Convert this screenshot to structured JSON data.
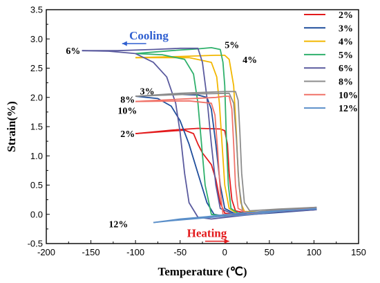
{
  "chart_data": {
    "type": "line",
    "title": "",
    "xlabel": "Temperature (℃)",
    "ylabel": "Strain(%)",
    "xlim": [
      -200,
      150
    ],
    "ylim": [
      -0.5,
      3.5
    ],
    "xticks": [
      "-200",
      "-150",
      "-100",
      "-50",
      "0",
      "50",
      "100",
      "150"
    ],
    "yticks": [
      "-0.5",
      "0.0",
      "0.5",
      "1.0",
      "1.5",
      "2.0",
      "2.5",
      "3.0",
      "3.5"
    ],
    "grid": false,
    "legend_position": "right",
    "series": [
      {
        "name": "2%",
        "color": "#e31a1c",
        "cooling": [
          [
            103,
            0.1
          ],
          [
            60,
            0.06
          ],
          [
            30,
            0.02
          ],
          [
            10,
            0
          ],
          [
            0,
            0.02
          ],
          [
            -5,
            0.2
          ],
          [
            -10,
            0.6
          ],
          [
            -15,
            0.85
          ],
          [
            -20,
            0.95
          ],
          [
            -25,
            1.05
          ],
          [
            -30,
            1.2
          ],
          [
            -35,
            1.38
          ],
          [
            -45,
            1.44
          ],
          [
            -65,
            1.42
          ],
          [
            -100,
            1.38
          ]
        ],
        "heating": [
          [
            -100,
            1.38
          ],
          [
            -60,
            1.44
          ],
          [
            -30,
            1.47
          ],
          [
            -5,
            1.46
          ],
          [
            0,
            1.43
          ],
          [
            3,
            1.2
          ],
          [
            5,
            0.7
          ],
          [
            8,
            0.25
          ],
          [
            12,
            0.06
          ],
          [
            25,
            0.02
          ],
          [
            60,
            0.05
          ],
          [
            103,
            0.1
          ]
        ]
      },
      {
        "name": "3%",
        "color": "#1f4e9c",
        "cooling": [
          [
            103,
            0.08
          ],
          [
            50,
            0.02
          ],
          [
            20,
            -0.01
          ],
          [
            -5,
            -0.02
          ],
          [
            -12,
            0.0
          ],
          [
            -20,
            0.2
          ],
          [
            -30,
            0.7
          ],
          [
            -40,
            1.2
          ],
          [
            -50,
            1.6
          ],
          [
            -60,
            1.85
          ],
          [
            -75,
            1.98
          ],
          [
            -100,
            2.02
          ]
        ],
        "heating": [
          [
            -100,
            2.02
          ],
          [
            -70,
            2.04
          ],
          [
            -50,
            2.05
          ],
          [
            -30,
            2.04
          ],
          [
            -20,
            2.0
          ],
          [
            -15,
            1.8
          ],
          [
            -10,
            1.2
          ],
          [
            -5,
            0.5
          ],
          [
            0,
            0.1
          ],
          [
            10,
            0.02
          ],
          [
            50,
            0.04
          ],
          [
            103,
            0.08
          ]
        ]
      },
      {
        "name": "4%",
        "color": "#f2b701",
        "cooling": [
          [
            103,
            0.1
          ],
          [
            60,
            0.06
          ],
          [
            30,
            0.02
          ],
          [
            15,
            0
          ],
          [
            5,
            0.1
          ],
          [
            0,
            0.5
          ],
          [
            -3,
            1.2
          ],
          [
            -6,
            1.9
          ],
          [
            -9,
            2.35
          ],
          [
            -15,
            2.6
          ],
          [
            -40,
            2.68
          ],
          [
            -100,
            2.68
          ]
        ],
        "heating": [
          [
            -100,
            2.68
          ],
          [
            -50,
            2.7
          ],
          [
            -10,
            2.72
          ],
          [
            0,
            2.72
          ],
          [
            5,
            2.65
          ],
          [
            10,
            2.2
          ],
          [
            13,
            1.4
          ],
          [
            15,
            0.7
          ],
          [
            18,
            0.2
          ],
          [
            22,
            0.05
          ],
          [
            40,
            0.04
          ],
          [
            103,
            0.1
          ]
        ]
      },
      {
        "name": "5%",
        "color": "#2eb06b",
        "cooling": [
          [
            103,
            0.1
          ],
          [
            60,
            0.05
          ],
          [
            30,
            0
          ],
          [
            0,
            -0.03
          ],
          [
            -15,
            0.0
          ],
          [
            -22,
            0.5
          ],
          [
            -26,
            1.2
          ],
          [
            -30,
            1.9
          ],
          [
            -35,
            2.4
          ],
          [
            -45,
            2.65
          ],
          [
            -70,
            2.73
          ],
          [
            -100,
            2.75
          ]
        ],
        "heating": [
          [
            -100,
            2.75
          ],
          [
            -60,
            2.8
          ],
          [
            -30,
            2.83
          ],
          [
            -15,
            2.85
          ],
          [
            -5,
            2.82
          ],
          [
            -2,
            2.6
          ],
          [
            0,
            2.2
          ],
          [
            2,
            1.2
          ],
          [
            4,
            0.5
          ],
          [
            7,
            0.1
          ],
          [
            15,
            0.02
          ],
          [
            50,
            0.05
          ],
          [
            103,
            0.1
          ]
        ]
      },
      {
        "name": "6%",
        "color": "#5a5a9e",
        "cooling": [
          [
            103,
            0.08
          ],
          [
            60,
            0.04
          ],
          [
            20,
            -0.02
          ],
          [
            -15,
            -0.08
          ],
          [
            -30,
            -0.05
          ],
          [
            -40,
            0.2
          ],
          [
            -45,
            0.7
          ],
          [
            -50,
            1.4
          ],
          [
            -55,
            1.9
          ],
          [
            -65,
            2.35
          ],
          [
            -80,
            2.6
          ],
          [
            -100,
            2.75
          ],
          [
            -130,
            2.79
          ],
          [
            -160,
            2.8
          ]
        ],
        "heating": [
          [
            -160,
            2.8
          ],
          [
            -120,
            2.8
          ],
          [
            -80,
            2.82
          ],
          [
            -50,
            2.84
          ],
          [
            -30,
            2.84
          ],
          [
            -25,
            2.6
          ],
          [
            -20,
            2.0
          ],
          [
            -15,
            1.2
          ],
          [
            -10,
            0.5
          ],
          [
            -5,
            0.1
          ],
          [
            10,
            0.0
          ],
          [
            50,
            0.04
          ],
          [
            103,
            0.08
          ]
        ]
      },
      {
        "name": "8%",
        "color": "#8c8c8c",
        "cooling": [
          [
            103,
            0.12
          ],
          [
            60,
            0.08
          ],
          [
            30,
            0.03
          ],
          [
            20,
            0.05
          ],
          [
            16,
            0.5
          ],
          [
            13,
            1.3
          ],
          [
            10,
            1.9
          ],
          [
            5,
            2.07
          ],
          [
            -30,
            2.06
          ],
          [
            -100,
            2.02
          ]
        ],
        "heating": [
          [
            -100,
            2.02
          ],
          [
            -50,
            2.07
          ],
          [
            0,
            2.1
          ],
          [
            12,
            2.1
          ],
          [
            15,
            1.95
          ],
          [
            17,
            1.4
          ],
          [
            19,
            0.7
          ],
          [
            22,
            0.2
          ],
          [
            28,
            0.06
          ],
          [
            60,
            0.09
          ],
          [
            103,
            0.12
          ]
        ]
      },
      {
        "name": "10%",
        "color": "#f07167",
        "cooling": [
          [
            103,
            0.1
          ],
          [
            60,
            0.05
          ],
          [
            30,
            0
          ],
          [
            10,
            -0.02
          ],
          [
            -2,
            0.0
          ],
          [
            -5,
            0.4
          ],
          [
            -8,
            1.1
          ],
          [
            -11,
            1.7
          ],
          [
            -15,
            1.9
          ],
          [
            -40,
            1.94
          ],
          [
            -100,
            1.93
          ]
        ],
        "heating": [
          [
            -100,
            1.93
          ],
          [
            -50,
            1.97
          ],
          [
            -10,
            2.0
          ],
          [
            0,
            2.02
          ],
          [
            5,
            2.02
          ],
          [
            8,
            1.8
          ],
          [
            10,
            1.2
          ],
          [
            12,
            0.5
          ],
          [
            15,
            0.1
          ],
          [
            25,
            0.02
          ],
          [
            60,
            0.06
          ],
          [
            103,
            0.1
          ]
        ]
      },
      {
        "name": "12%",
        "color": "#5b8fc9",
        "cooling": [
          [
            103,
            0.1
          ],
          [
            60,
            0.05
          ],
          [
            30,
            0.0
          ],
          [
            0,
            -0.03
          ],
          [
            -30,
            -0.07
          ],
          [
            -60,
            -0.11
          ],
          [
            -80,
            -0.14
          ]
        ],
        "heating": [
          [
            -80,
            -0.14
          ],
          [
            -50,
            -0.08
          ],
          [
            -20,
            -0.04
          ],
          [
            10,
            0.01
          ],
          [
            40,
            0.04
          ],
          [
            70,
            0.07
          ],
          [
            103,
            0.09
          ]
        ]
      }
    ],
    "annotations": [
      {
        "text": "Cooling",
        "x": -85,
        "y": 3.05,
        "color": "#2f5fd0"
      },
      {
        "text": "Heating",
        "x": -20,
        "y": -0.33,
        "color": "#e31a1c"
      },
      {
        "text": "6%",
        "x": -178,
        "y": 2.8
      },
      {
        "text": "5%",
        "x": 0,
        "y": 2.9
      },
      {
        "text": "4%",
        "x": 20,
        "y": 2.65
      },
      {
        "text": "3%",
        "x": -95,
        "y": 2.11
      },
      {
        "text": "8%",
        "x": -117,
        "y": 1.97
      },
      {
        "text": "10%",
        "x": -120,
        "y": 1.78
      },
      {
        "text": "2%",
        "x": -117,
        "y": 1.38
      },
      {
        "text": "12%",
        "x": -130,
        "y": -0.16
      }
    ]
  }
}
